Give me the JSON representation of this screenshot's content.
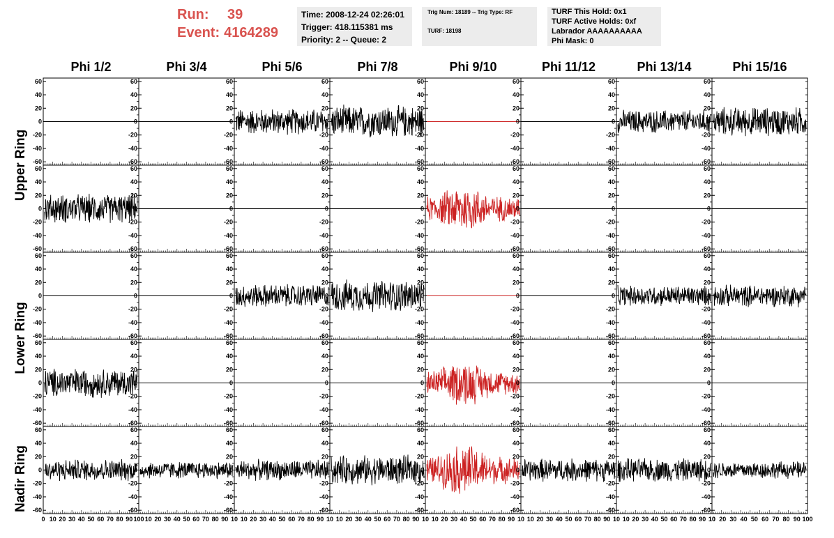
{
  "header": {
    "run_label": "Run:",
    "run_value": "39",
    "event_label": "Event:",
    "event_value": "4164289",
    "time": "Time: 2008-12-24 02:26:01",
    "trigger": "Trigger: 418.115381 ms",
    "priority": "Priority: 2 -- Queue: 2",
    "trig_num": "Trig Num: 18189 -- Trig Type: RF",
    "turf": "TURF: 18198",
    "turf_this_hold": "TURF This Hold: 0x1",
    "turf_active_holds": "TURF Active Holds: 0xf",
    "labrador": "Labrador AAAAAAAAAA",
    "phi_mask": "Phi Mask: 0"
  },
  "columns": [
    "Phi 1/2",
    "Phi 3/4",
    "Phi 5/6",
    "Phi 7/8",
    "Phi 9/10",
    "Phi 11/12",
    "Phi 13/14",
    "Phi 15/16"
  ],
  "rings": [
    "Upper Ring",
    "Lower Ring",
    "Nadir Ring"
  ],
  "colors": {
    "trace": "#000000",
    "highlight": "#cc2222",
    "header_red": "#d9534f",
    "box_bg": "#ececec"
  },
  "chart_data": {
    "type": "line",
    "description_of_grid": "5 rows x 8 columns of waveform panels",
    "ylim": [
      -65,
      65
    ],
    "yticks": [
      -60,
      -40,
      -20,
      0,
      20,
      40,
      60
    ],
    "xlim": [
      0,
      100
    ],
    "xticks": [
      0,
      10,
      20,
      30,
      40,
      50,
      60,
      70,
      80,
      90,
      100
    ],
    "xtick_labels_bottom": [
      "0 10 20 30 40 50 60 70 80 90 100",
      "10 20 30 40 50 60 70 80 90 10",
      "10 20 30 40 50 60 70 80 90 10",
      "10 20 30 40 50 60 70 80 90 10",
      "10 20 30 40 50 60 70 80 90 10",
      "10 20 30 40 50 60 70 80 90 10",
      "10 20 30 40 50 60 70 80 90 10",
      "10 20 30 40 50 60 70 80 90 100"
    ],
    "highlight_column": 4,
    "panels": [
      [
        {
          "amp": 0
        },
        {
          "amp": 0
        },
        {
          "amp": 18
        },
        {
          "amp": 22
        },
        {
          "amp": 0
        },
        {
          "amp": 0
        },
        {
          "amp": 16
        },
        {
          "amp": 20
        }
      ],
      [
        {
          "amp": 20
        },
        {
          "amp": 0
        },
        {
          "amp": 0
        },
        {
          "amp": 0
        },
        {
          "amp": 30
        },
        {
          "amp": 0
        },
        {
          "amp": 0
        },
        {
          "amp": 0
        }
      ],
      [
        {
          "amp": 0
        },
        {
          "amp": 0
        },
        {
          "amp": 16
        },
        {
          "amp": 22
        },
        {
          "amp": 0
        },
        {
          "amp": 0
        },
        {
          "amp": 14
        },
        {
          "amp": 15
        }
      ],
      [
        {
          "amp": 20
        },
        {
          "amp": 0
        },
        {
          "amp": 0
        },
        {
          "amp": 0
        },
        {
          "amp": 28
        },
        {
          "amp": 0
        },
        {
          "amp": 0
        },
        {
          "amp": 0
        }
      ],
      [
        {
          "amp": 15
        },
        {
          "amp": 12
        },
        {
          "amp": 14
        },
        {
          "amp": 20
        },
        {
          "amp": 32
        },
        {
          "amp": 16
        },
        {
          "amp": 16
        },
        {
          "amp": 12
        }
      ]
    ]
  }
}
